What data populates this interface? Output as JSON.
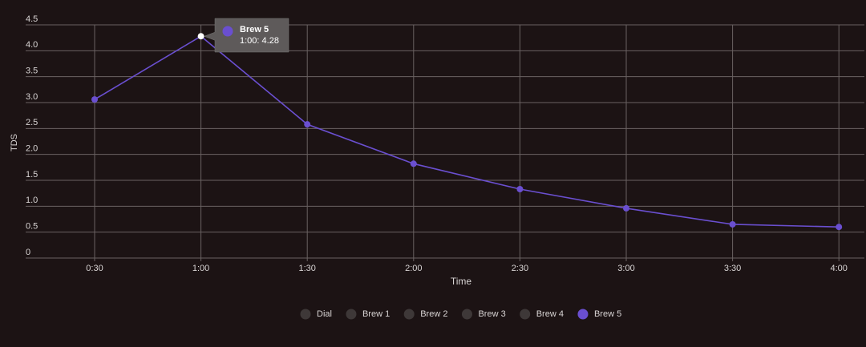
{
  "chart_data": {
    "type": "line",
    "xlabel": "Time",
    "ylabel": "TDS",
    "categories": [
      "0:30",
      "1:00",
      "1:30",
      "2:00",
      "2:30",
      "3:00",
      "3:30",
      "4:00"
    ],
    "series": [
      {
        "name": "Dial",
        "color": "#3e3838",
        "hidden": true
      },
      {
        "name": "Brew 1",
        "color": "#3e3838",
        "hidden": true
      },
      {
        "name": "Brew 2",
        "color": "#3e3838",
        "hidden": true
      },
      {
        "name": "Brew 3",
        "color": "#3e3838",
        "hidden": true
      },
      {
        "name": "Brew 4",
        "color": "#3e3838",
        "hidden": true
      },
      {
        "name": "Brew 5",
        "color": "#6a4fd0",
        "values": [
          3.06,
          4.28,
          2.58,
          1.82,
          1.33,
          0.96,
          0.65,
          0.6
        ]
      }
    ],
    "ylim": [
      0,
      4.5
    ],
    "yticks": [
      0,
      0.5,
      {
        "value": 1,
        "label": "1.0"
      },
      1.5,
      {
        "value": 2,
        "label": "2.0"
      },
      2.5,
      {
        "value": 3,
        "label": "3.0"
      },
      3.5,
      {
        "value": 4,
        "label": "4.0"
      },
      4.5
    ],
    "grid": true,
    "legend": "bottom",
    "tooltip": {
      "series": 5,
      "index": 1,
      "label": "1:00: 4.28"
    }
  }
}
